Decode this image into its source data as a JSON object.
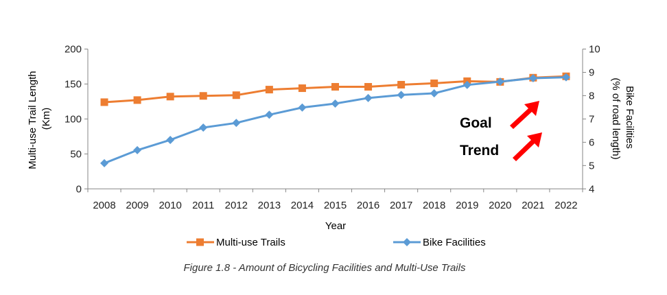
{
  "chart_data": {
    "type": "line",
    "title": "",
    "caption": "Figure 1.8 - Amount of Bicycling Facilities and Multi-Use Trails",
    "xlabel": "Year",
    "ylabel_left": "Multi-use Trail Length (Km)",
    "ylabel_left_lines": [
      "Multi-use Trail Length",
      "(Km)"
    ],
    "ylabel_right_lines": [
      "Bike Facilities",
      "(% of road length)"
    ],
    "categories": [
      "2008",
      "2009",
      "2010",
      "2011",
      "2012",
      "2013",
      "2014",
      "2015",
      "2016",
      "2017",
      "2018",
      "2019",
      "2020",
      "2021",
      "2022"
    ],
    "ylim_left": [
      0,
      200
    ],
    "yticks_left": [
      0,
      50,
      100,
      150,
      200
    ],
    "ylim_right": [
      4,
      10
    ],
    "yticks_right": [
      4,
      5,
      6,
      7,
      8,
      9,
      10
    ],
    "grid": false,
    "legend_position": "bottom",
    "series": [
      {
        "name": "Multi-use Trails",
        "axis": "left",
        "color": "#ED7D31",
        "marker": "square",
        "values": [
          124,
          127,
          132,
          133,
          134,
          142,
          144,
          146,
          146,
          149,
          151,
          154,
          153,
          159,
          161
        ]
      },
      {
        "name": "Bike Facilities",
        "axis": "right",
        "color": "#5B9BD5",
        "marker": "diamond",
        "values": [
          5.1,
          5.66,
          6.1,
          6.63,
          6.83,
          7.18,
          7.49,
          7.66,
          7.9,
          8.03,
          8.1,
          8.46,
          8.6,
          8.75,
          8.79
        ]
      }
    ],
    "annotations": [
      {
        "text": "Goal",
        "arrow_color": "#FF0000"
      },
      {
        "text": "Trend",
        "arrow_color": "#FF0000"
      }
    ]
  }
}
